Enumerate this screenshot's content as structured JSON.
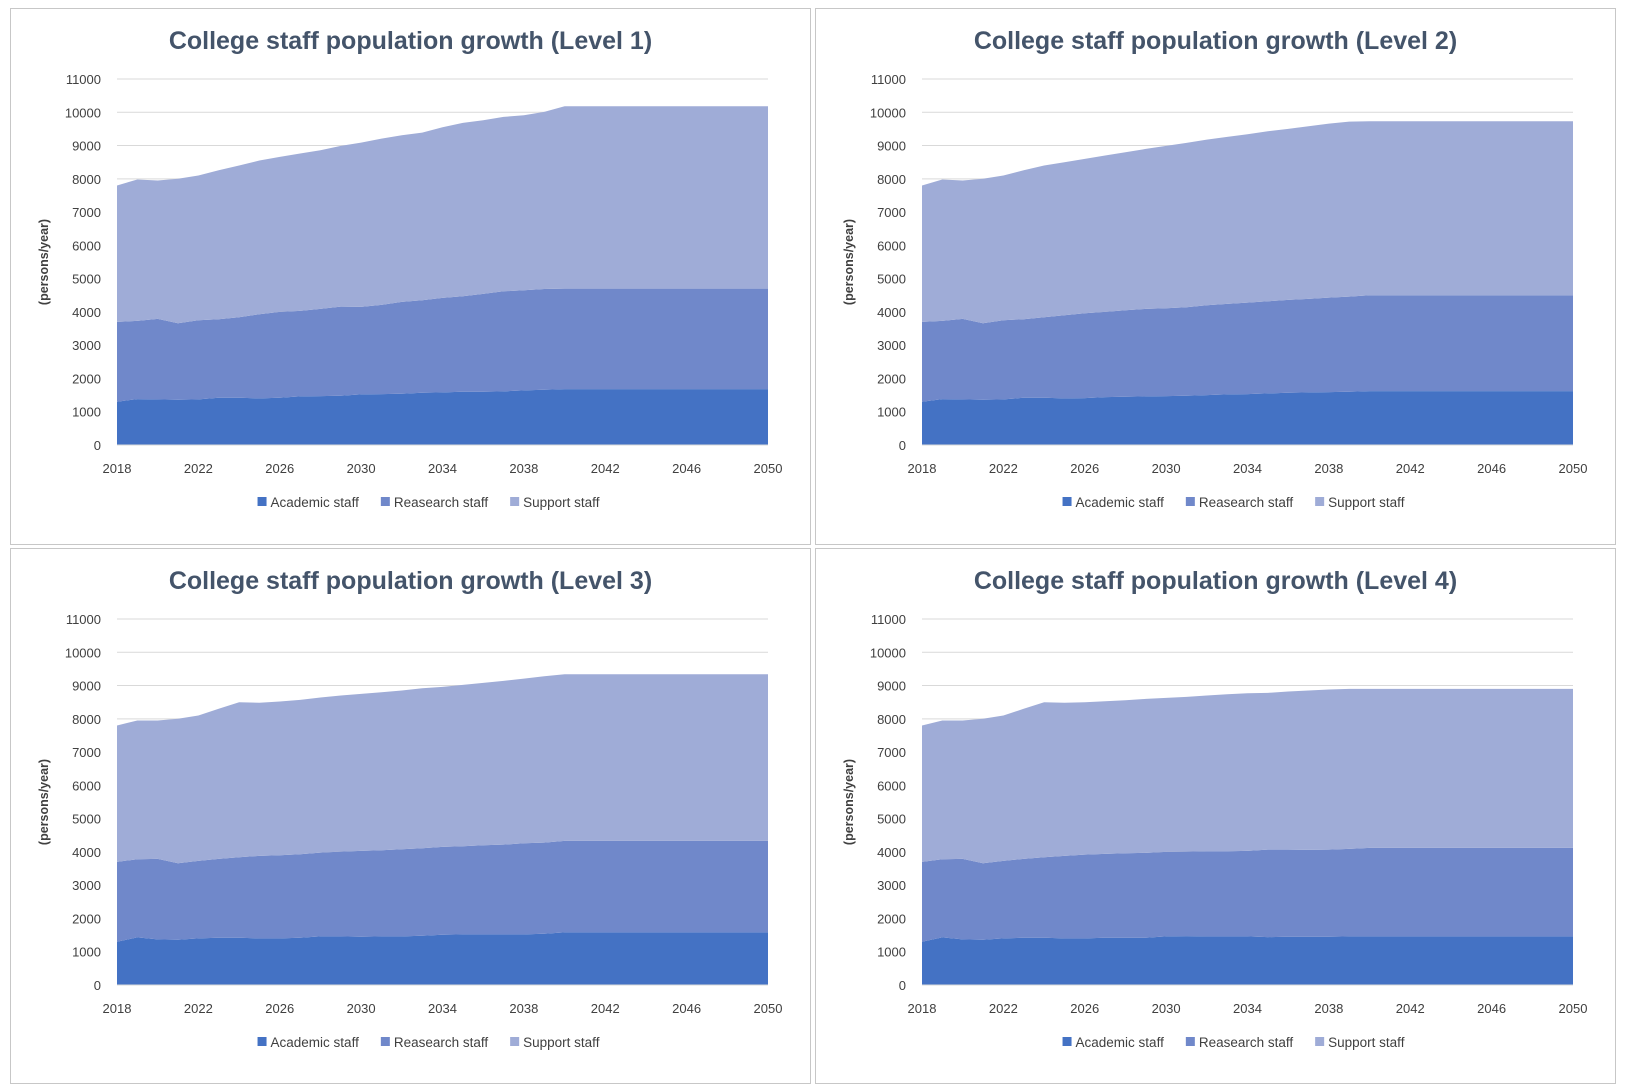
{
  "colors": {
    "academic": "#4472c4",
    "research": "#7088ca",
    "support": "#9facd7",
    "grid": "#d9d9d9",
    "title": "#44546a"
  },
  "chart_data": [
    {
      "type": "area",
      "stacked": true,
      "title": "College staff population growth (Level 1)",
      "xlabel": "",
      "ylabel": "(persons/year)",
      "xlim": [
        2018,
        2050
      ],
      "ylim": [
        0,
        11000
      ],
      "x_ticks": [
        "2018",
        "2022",
        "2026",
        "2030",
        "2034",
        "2038",
        "2042",
        "2046",
        "2050"
      ],
      "y_ticks": [
        "0",
        "1000",
        "2000",
        "3000",
        "4000",
        "5000",
        "6000",
        "7000",
        "8000",
        "9000",
        "10000",
        "11000"
      ],
      "legend_position": "bottom",
      "x": [
        2018,
        2019,
        2020,
        2021,
        2022,
        2023,
        2024,
        2025,
        2026,
        2027,
        2028,
        2029,
        2030,
        2031,
        2032,
        2033,
        2034,
        2035,
        2036,
        2037,
        2038,
        2039,
        2040,
        2041,
        2042,
        2043,
        2044,
        2045,
        2046,
        2047,
        2048,
        2049,
        2050
      ],
      "series": [
        {
          "name": "Academic staff",
          "values": [
            1300,
            1380,
            1370,
            1360,
            1370,
            1420,
            1420,
            1400,
            1420,
            1460,
            1470,
            1480,
            1520,
            1530,
            1540,
            1570,
            1580,
            1600,
            1600,
            1610,
            1640,
            1660,
            1680,
            1680,
            1680,
            1680,
            1680,
            1680,
            1680,
            1680,
            1680,
            1680,
            1680
          ]
        },
        {
          "name": "Reasearch staff",
          "values": [
            2400,
            2350,
            2420,
            2300,
            2380,
            2360,
            2420,
            2530,
            2580,
            2570,
            2620,
            2680,
            2630,
            2680,
            2760,
            2780,
            2840,
            2870,
            2940,
            3010,
            3010,
            3030,
            3020,
            3020,
            3020,
            3020,
            3020,
            3020,
            3020,
            3020,
            3020,
            3020,
            3020
          ]
        },
        {
          "name": "Support staff",
          "values": [
            4100,
            4250,
            4160,
            4340,
            4350,
            4480,
            4560,
            4620,
            4660,
            4730,
            4770,
            4830,
            4940,
            5000,
            5010,
            5040,
            5130,
            5210,
            5220,
            5240,
            5260,
            5320,
            5480,
            5480,
            5480,
            5480,
            5480,
            5480,
            5480,
            5480,
            5480,
            5480,
            5480
          ]
        }
      ]
    },
    {
      "type": "area",
      "stacked": true,
      "title": "College staff population growth (Level 2)",
      "xlabel": "",
      "ylabel": "(persons/year)",
      "xlim": [
        2018,
        2050
      ],
      "ylim": [
        0,
        11000
      ],
      "x_ticks": [
        "2018",
        "2022",
        "2026",
        "2030",
        "2034",
        "2038",
        "2042",
        "2046",
        "2050"
      ],
      "y_ticks": [
        "0",
        "1000",
        "2000",
        "3000",
        "4000",
        "5000",
        "6000",
        "7000",
        "8000",
        "9000",
        "10000",
        "11000"
      ],
      "legend_position": "bottom",
      "x": [
        2018,
        2019,
        2020,
        2021,
        2022,
        2023,
        2024,
        2025,
        2026,
        2027,
        2028,
        2029,
        2030,
        2031,
        2032,
        2033,
        2034,
        2035,
        2036,
        2037,
        2038,
        2039,
        2040,
        2041,
        2042,
        2043,
        2044,
        2045,
        2046,
        2047,
        2048,
        2049,
        2050
      ],
      "series": [
        {
          "name": "Academic staff",
          "values": [
            1300,
            1380,
            1370,
            1360,
            1370,
            1420,
            1420,
            1400,
            1410,
            1440,
            1450,
            1460,
            1470,
            1480,
            1500,
            1520,
            1530,
            1550,
            1570,
            1580,
            1590,
            1600,
            1620,
            1620,
            1620,
            1620,
            1620,
            1620,
            1620,
            1620,
            1620,
            1620,
            1620
          ]
        },
        {
          "name": "Reasearch staff",
          "values": [
            2400,
            2350,
            2420,
            2300,
            2380,
            2360,
            2420,
            2500,
            2550,
            2560,
            2600,
            2630,
            2640,
            2660,
            2700,
            2720,
            2750,
            2770,
            2790,
            2810,
            2840,
            2860,
            2880,
            2880,
            2880,
            2880,
            2880,
            2880,
            2880,
            2880,
            2880,
            2880,
            2880
          ]
        },
        {
          "name": "Support staff",
          "values": [
            4100,
            4250,
            4160,
            4340,
            4350,
            4480,
            4560,
            4600,
            4640,
            4700,
            4750,
            4810,
            4880,
            4940,
            4980,
            5020,
            5060,
            5110,
            5140,
            5190,
            5230,
            5260,
            5230,
            5230,
            5230,
            5230,
            5230,
            5230,
            5230,
            5230,
            5230,
            5230,
            5230
          ]
        }
      ]
    },
    {
      "type": "area",
      "stacked": true,
      "title": "College staff population growth (Level 3)",
      "xlabel": "",
      "ylabel": "(persons/year)",
      "xlim": [
        2018,
        2050
      ],
      "ylim": [
        0,
        11000
      ],
      "x_ticks": [
        "2018",
        "2022",
        "2026",
        "2030",
        "2034",
        "2038",
        "2042",
        "2046",
        "2050"
      ],
      "y_ticks": [
        "0",
        "1000",
        "2000",
        "3000",
        "4000",
        "5000",
        "6000",
        "7000",
        "8000",
        "9000",
        "10000",
        "11000"
      ],
      "legend_position": "bottom",
      "x": [
        2018,
        2019,
        2020,
        2021,
        2022,
        2023,
        2024,
        2025,
        2026,
        2027,
        2028,
        2029,
        2030,
        2031,
        2032,
        2033,
        2034,
        2035,
        2036,
        2037,
        2038,
        2039,
        2040,
        2041,
        2042,
        2043,
        2044,
        2045,
        2046,
        2047,
        2048,
        2049,
        2050
      ],
      "series": [
        {
          "name": "Academic staff",
          "values": [
            1300,
            1430,
            1370,
            1360,
            1400,
            1420,
            1420,
            1400,
            1400,
            1420,
            1460,
            1460,
            1450,
            1460,
            1460,
            1480,
            1510,
            1520,
            1520,
            1520,
            1520,
            1540,
            1580,
            1580,
            1580,
            1580,
            1580,
            1580,
            1580,
            1580,
            1580,
            1580,
            1580
          ]
        },
        {
          "name": "Reasearch staff",
          "values": [
            2400,
            2350,
            2420,
            2300,
            2330,
            2370,
            2420,
            2480,
            2500,
            2510,
            2520,
            2550,
            2580,
            2590,
            2620,
            2630,
            2640,
            2650,
            2680,
            2700,
            2740,
            2740,
            2750,
            2750,
            2750,
            2750,
            2750,
            2750,
            2750,
            2750,
            2750,
            2750,
            2750
          ]
        },
        {
          "name": "Support staff",
          "values": [
            4100,
            4170,
            4160,
            4340,
            4370,
            4510,
            4660,
            4600,
            4620,
            4640,
            4660,
            4690,
            4720,
            4750,
            4770,
            4810,
            4810,
            4850,
            4880,
            4920,
            4950,
            5000,
            5010,
            5010,
            5010,
            5010,
            5010,
            5010,
            5010,
            5010,
            5010,
            5010,
            5010
          ]
        }
      ]
    },
    {
      "type": "area",
      "stacked": true,
      "title": "College staff population growth (Level 4)",
      "xlabel": "",
      "ylabel": "(persons/year)",
      "xlim": [
        2018,
        2050
      ],
      "ylim": [
        0,
        11000
      ],
      "x_ticks": [
        "2018",
        "2022",
        "2026",
        "2030",
        "2034",
        "2038",
        "2042",
        "2046",
        "2050"
      ],
      "y_ticks": [
        "0",
        "1000",
        "2000",
        "3000",
        "4000",
        "5000",
        "6000",
        "7000",
        "8000",
        "9000",
        "10000",
        "11000"
      ],
      "legend_position": "bottom",
      "x": [
        2018,
        2019,
        2020,
        2021,
        2022,
        2023,
        2024,
        2025,
        2026,
        2027,
        2028,
        2029,
        2030,
        2031,
        2032,
        2033,
        2034,
        2035,
        2036,
        2037,
        2038,
        2039,
        2040,
        2041,
        2042,
        2043,
        2044,
        2045,
        2046,
        2047,
        2048,
        2049,
        2050
      ],
      "series": [
        {
          "name": "Academic staff",
          "values": [
            1300,
            1430,
            1370,
            1360,
            1400,
            1420,
            1420,
            1400,
            1400,
            1420,
            1420,
            1420,
            1460,
            1470,
            1460,
            1460,
            1460,
            1440,
            1450,
            1450,
            1450,
            1460,
            1460,
            1460,
            1460,
            1460,
            1460,
            1460,
            1460,
            1460,
            1460,
            1460,
            1460
          ]
        },
        {
          "name": "Reasearch staff",
          "values": [
            2400,
            2350,
            2420,
            2300,
            2330,
            2370,
            2420,
            2480,
            2520,
            2520,
            2540,
            2550,
            2540,
            2540,
            2560,
            2560,
            2570,
            2630,
            2620,
            2610,
            2620,
            2630,
            2660,
            2660,
            2660,
            2660,
            2660,
            2660,
            2660,
            2660,
            2660,
            2660,
            2660
          ]
        },
        {
          "name": "Support staff",
          "values": [
            4100,
            4170,
            4160,
            4340,
            4370,
            4510,
            4660,
            4600,
            4580,
            4590,
            4600,
            4630,
            4630,
            4650,
            4680,
            4720,
            4740,
            4710,
            4750,
            4790,
            4810,
            4810,
            4780,
            4780,
            4780,
            4780,
            4780,
            4780,
            4780,
            4780,
            4780,
            4780,
            4780
          ]
        }
      ]
    }
  ]
}
